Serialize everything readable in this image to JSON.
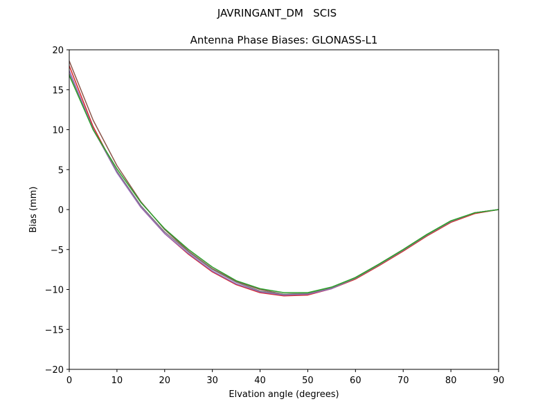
{
  "figure": {
    "suptitle": "JAVRINGANT_DM   SCIS"
  },
  "chart_data": {
    "type": "line",
    "title": "Antenna Phase Biases: GLONASS-L1",
    "xlabel": "Elvation angle (degrees)",
    "ylabel": "Bias (mm)",
    "xlim": [
      0,
      90
    ],
    "ylim": [
      -20,
      20
    ],
    "xticks": [
      0,
      10,
      20,
      30,
      40,
      50,
      60,
      70,
      80,
      90
    ],
    "yticks": [
      -20,
      -15,
      -10,
      -5,
      0,
      5,
      10,
      15,
      20
    ],
    "ytick_labels": [
      "−20",
      "−15",
      "−10",
      "−5",
      "0",
      "5",
      "10",
      "15",
      "20"
    ],
    "grid": false,
    "legend": "none",
    "x": [
      0,
      5,
      10,
      15,
      20,
      25,
      30,
      35,
      40,
      45,
      50,
      55,
      60,
      65,
      70,
      75,
      80,
      85,
      90
    ],
    "series": [
      {
        "color": "#8c564b",
        "values": [
          18.6,
          11.2,
          5.5,
          1.0,
          -2.5,
          -5.2,
          -7.4,
          -9.0,
          -10.0,
          -10.6,
          -10.5,
          -9.8,
          -8.5,
          -6.8,
          -5.0,
          -3.1,
          -1.5,
          -0.4,
          0.0
        ]
      },
      {
        "color": "#d62728",
        "values": [
          18.0,
          10.4,
          4.7,
          0.3,
          -3.0,
          -5.6,
          -7.8,
          -9.4,
          -10.4,
          -10.8,
          -10.7,
          -9.9,
          -8.7,
          -7.0,
          -5.2,
          -3.3,
          -1.6,
          -0.5,
          0.0
        ]
      },
      {
        "color": "#9467bd",
        "values": [
          17.4,
          10.1,
          4.6,
          0.3,
          -3.0,
          -5.5,
          -7.7,
          -9.3,
          -10.3,
          -10.7,
          -10.6,
          -9.9,
          -8.6,
          -6.9,
          -5.1,
          -3.2,
          -1.5,
          -0.4,
          0.0
        ]
      },
      {
        "color": "#7f7f7f",
        "values": [
          17.0,
          10.0,
          4.8,
          0.5,
          -2.8,
          -5.3,
          -7.5,
          -9.1,
          -10.2,
          -10.6,
          -10.5,
          -9.8,
          -8.6,
          -6.9,
          -5.1,
          -3.2,
          -1.5,
          -0.4,
          0.0
        ]
      },
      {
        "color": "#2ca02c",
        "values": [
          16.8,
          10.0,
          5.1,
          0.9,
          -2.4,
          -5.0,
          -7.2,
          -8.9,
          -9.9,
          -10.4,
          -10.4,
          -9.7,
          -8.5,
          -6.8,
          -5.0,
          -3.1,
          -1.4,
          -0.4,
          0.0
        ]
      }
    ]
  }
}
